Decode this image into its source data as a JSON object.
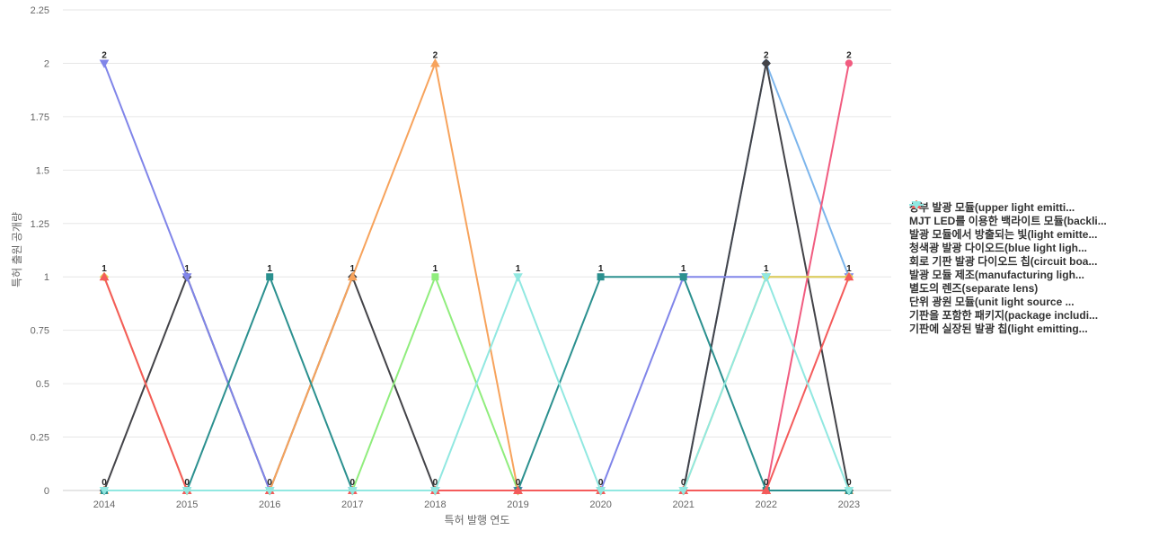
{
  "chart_data": {
    "type": "line",
    "xlabel": "특허 발행 연도",
    "ylabel": "특허 출원 공개량",
    "x": [
      "2014",
      "2015",
      "2016",
      "2017",
      "2018",
      "2019",
      "2020",
      "2021",
      "2022",
      "2023"
    ],
    "ylim": [
      0,
      2.25
    ],
    "yticks": [
      "0",
      "0.25",
      "0.5",
      "0.75",
      "1",
      "1.25",
      "1.5",
      "1.75",
      "2",
      "2.25"
    ],
    "grid": true,
    "legend_position": "right",
    "series": [
      {
        "name": "상부 발광 모듈(upper light emitti...",
        "color": "#7cb5ec",
        "marker": "circle",
        "values": [
          0,
          0,
          0,
          0,
          0,
          0,
          0,
          0,
          2,
          1
        ]
      },
      {
        "name": "MJT LED를 이용한 백라이트 모듈(backli...",
        "color": "#434348",
        "marker": "diamond",
        "values": [
          0,
          1,
          0,
          1,
          0,
          0,
          0,
          0,
          2,
          0
        ]
      },
      {
        "name": "발광 모듈에서 방출되는 빛(light emitte...",
        "color": "#90ed7d",
        "marker": "square",
        "values": [
          0,
          0,
          0,
          0,
          1,
          0,
          0,
          0,
          0,
          0
        ]
      },
      {
        "name": "청색광 발광 다이오드(blue light ligh...",
        "color": "#f7a35c",
        "marker": "triangle",
        "values": [
          0,
          0,
          0,
          1,
          2,
          0,
          0,
          0,
          0,
          0
        ]
      },
      {
        "name": "회로 기판 발광 다이오드 칩(circuit boa...",
        "color": "#8085e9",
        "marker": "triangle-down",
        "values": [
          2,
          1,
          0,
          0,
          0,
          0,
          0,
          1,
          1,
          1
        ]
      },
      {
        "name": "발광 모듈 제조(manufacturing ligh...",
        "color": "#f15c80",
        "marker": "circle",
        "values": [
          0,
          0,
          0,
          0,
          0,
          0,
          0,
          0,
          0,
          2
        ]
      },
      {
        "name": "별도의 렌즈(separate lens)",
        "color": "#e4d354",
        "marker": "diamond",
        "values": [
          1,
          0,
          0,
          0,
          0,
          0,
          0,
          0,
          1,
          1
        ]
      },
      {
        "name": "단위 광원 모듈(unit light source ...",
        "color": "#2b908f",
        "marker": "square",
        "values": [
          0,
          0,
          1,
          0,
          0,
          0,
          1,
          1,
          0,
          0
        ]
      },
      {
        "name": "기판을 포함한 패키지(package includi...",
        "color": "#f45b5b",
        "marker": "triangle",
        "values": [
          1,
          0,
          0,
          0,
          0,
          0,
          0,
          0,
          0,
          1
        ]
      },
      {
        "name": "기판에 실장된 발광 칩(light emitting...",
        "color": "#91e8e1",
        "marker": "triangle-down",
        "values": [
          0,
          0,
          0,
          0,
          0,
          1,
          0,
          0,
          1,
          0
        ]
      }
    ],
    "data_labels": [
      {
        "x": "2014",
        "y": 2,
        "text": "2"
      },
      {
        "x": "2014",
        "y": 1,
        "text": "1"
      },
      {
        "x": "2014",
        "y": 0,
        "text": "0"
      },
      {
        "x": "2015",
        "y": 1,
        "text": "1"
      },
      {
        "x": "2015",
        "y": 0,
        "text": "0"
      },
      {
        "x": "2016",
        "y": 1,
        "text": "1"
      },
      {
        "x": "2016",
        "y": 0,
        "text": "0"
      },
      {
        "x": "2017",
        "y": 1,
        "text": "1"
      },
      {
        "x": "2017",
        "y": 0,
        "text": "0"
      },
      {
        "x": "2018",
        "y": 2,
        "text": "2"
      },
      {
        "x": "2018",
        "y": 1,
        "text": "1"
      },
      {
        "x": "2018",
        "y": 0,
        "text": "0"
      },
      {
        "x": "2019",
        "y": 1,
        "text": "1"
      },
      {
        "x": "2019",
        "y": 0,
        "text": "0"
      },
      {
        "x": "2020",
        "y": 1,
        "text": "1"
      },
      {
        "x": "2020",
        "y": 0,
        "text": "0"
      },
      {
        "x": "2021",
        "y": 1,
        "text": "1"
      },
      {
        "x": "2021",
        "y": 0,
        "text": "0"
      },
      {
        "x": "2022",
        "y": 2,
        "text": "2"
      },
      {
        "x": "2022",
        "y": 1,
        "text": "1"
      },
      {
        "x": "2022",
        "y": 0,
        "text": "0"
      },
      {
        "x": "2023",
        "y": 2,
        "text": "2"
      },
      {
        "x": "2023",
        "y": 1,
        "text": "1"
      },
      {
        "x": "2023",
        "y": 0,
        "text": "0"
      }
    ]
  }
}
